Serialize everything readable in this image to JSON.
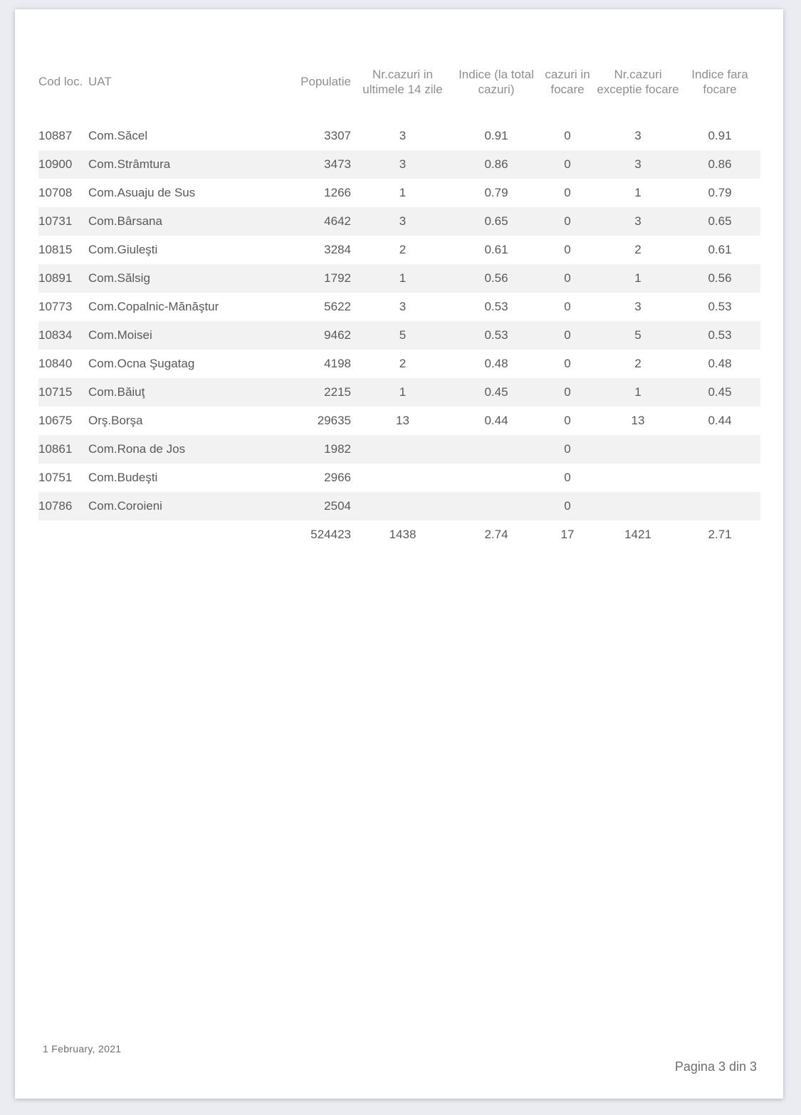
{
  "page": {
    "footer_date": "1 February, 2021",
    "footer_page": "Pagina 3 din 3"
  },
  "colors": {
    "canvas_background": "#ebebf2",
    "sheet_background": "#ffffff",
    "row_stripe": "#f2f2f2",
    "body_text": "#595959",
    "header_text": "#8f8f8f",
    "footer_text": "#6e6e6e"
  },
  "table": {
    "column_keys": [
      "cod-loc",
      "uat",
      "populatie",
      "nr-cazuri-ultimele-14-zile",
      "indice-la-total-cazuri",
      "cazuri-in-focare",
      "nr-cazuri-exceptie-focare",
      "indice-fara-focare"
    ],
    "headers": [
      "Cod loc.",
      "UAT",
      "Populatie",
      "Nr.cazuri in ultimele 14 zile",
      "Indice (la total cazuri)",
      "cazuri in focare",
      "Nr.cazuri exceptie focare",
      "Indice fara focare"
    ],
    "rows": [
      [
        "10887",
        "Com.Săcel",
        "3307",
        "3",
        "0.91",
        "0",
        "3",
        "0.91"
      ],
      [
        "10900",
        "Com.Strâmtura",
        "3473",
        "3",
        "0.86",
        "0",
        "3",
        "0.86"
      ],
      [
        "10708",
        "Com.Asuaju de Sus",
        "1266",
        "1",
        "0.79",
        "0",
        "1",
        "0.79"
      ],
      [
        "10731",
        "Com.Bârsana",
        "4642",
        "3",
        "0.65",
        "0",
        "3",
        "0.65"
      ],
      [
        "10815",
        "Com.Giuleşti",
        "3284",
        "2",
        "0.61",
        "0",
        "2",
        "0.61"
      ],
      [
        "10891",
        "Com.Sălsig",
        "1792",
        "1",
        "0.56",
        "0",
        "1",
        "0.56"
      ],
      [
        "10773",
        "Com.Copalnic-Mănăştur",
        "5622",
        "3",
        "0.53",
        "0",
        "3",
        "0.53"
      ],
      [
        "10834",
        "Com.Moisei",
        "9462",
        "5",
        "0.53",
        "0",
        "5",
        "0.53"
      ],
      [
        "10840",
        "Com.Ocna Şugatag",
        "4198",
        "2",
        "0.48",
        "0",
        "2",
        "0.48"
      ],
      [
        "10715",
        "Com.Băiuţ",
        "2215",
        "1",
        "0.45",
        "0",
        "1",
        "0.45"
      ],
      [
        "10675",
        "Orş.Borşa",
        "29635",
        "13",
        "0.44",
        "0",
        "13",
        "0.44"
      ],
      [
        "10861",
        "Com.Rona de Jos",
        "1982",
        "",
        "",
        "0",
        "",
        ""
      ],
      [
        "10751",
        "Com.Budeşti",
        "2966",
        "",
        "",
        "0",
        "",
        ""
      ],
      [
        "10786",
        "Com.Coroieni",
        "2504",
        "",
        "",
        "0",
        "",
        ""
      ]
    ],
    "totals": [
      "",
      "",
      "524423",
      "1438",
      "2.74",
      "17",
      "1421",
      "2.71"
    ]
  }
}
